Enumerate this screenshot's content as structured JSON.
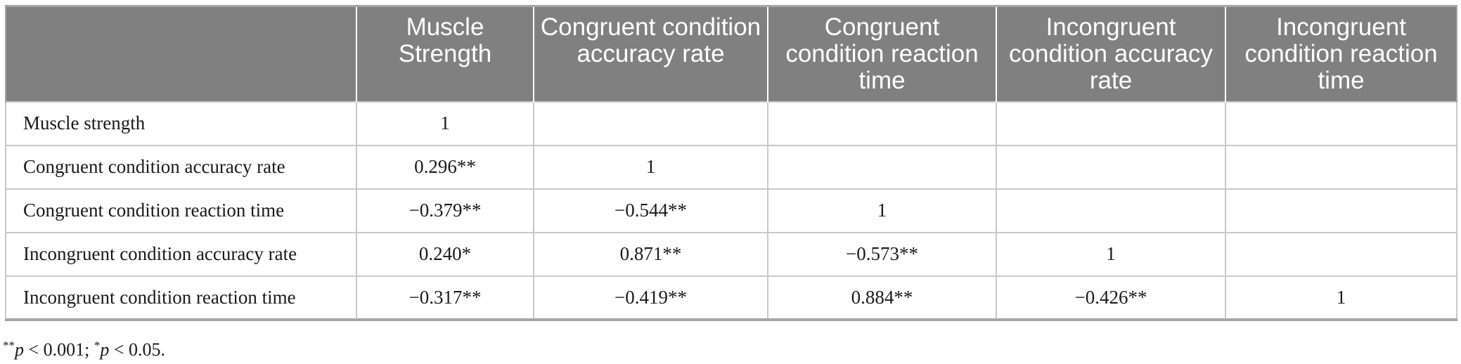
{
  "table": {
    "header": [
      "",
      "Muscle Strength",
      "Congruent condition accuracy rate",
      "Congruent condition reaction time",
      "Incongruent condition accuracy rate",
      "Incongruent condition reaction time"
    ],
    "rows": [
      [
        "Muscle strength",
        "1",
        "",
        "",
        "",
        ""
      ],
      [
        "Congruent condition accuracy rate",
        "0.296**",
        "1",
        "",
        "",
        ""
      ],
      [
        "Congruent condition reaction time",
        "−0.379**",
        "−0.544**",
        "1",
        "",
        ""
      ],
      [
        "Incongruent condition accuracy rate",
        "0.240*",
        "0.871**",
        "−0.573**",
        "1",
        ""
      ],
      [
        "Incongruent condition reaction time",
        "−0.317**",
        "−0.419**",
        "0.884**",
        "−0.426**",
        "1"
      ]
    ]
  },
  "footnote": {
    "mark_double": "**",
    "p_symbol": "p",
    "double_text": " < 0.001; ",
    "mark_single": "*",
    "single_text": " < 0.05."
  },
  "colors": {
    "header_bg": "#808080",
    "header_text": "#ffffff",
    "grid": "#c8c8c8"
  }
}
